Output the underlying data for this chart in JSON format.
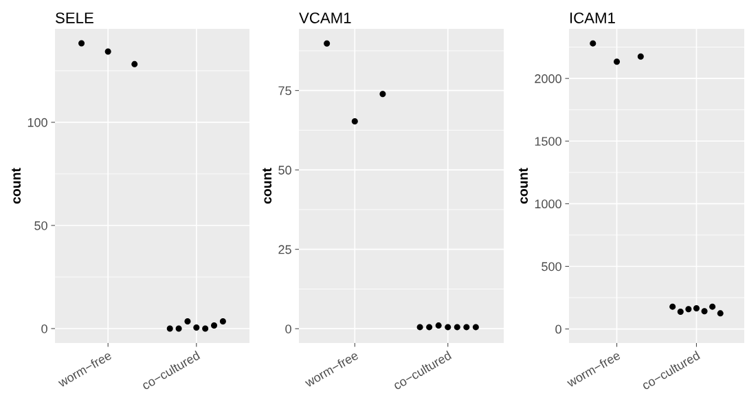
{
  "chart_data": [
    {
      "type": "scatter",
      "title": "SELE",
      "ylabel": "count",
      "categories": [
        "worm−free",
        "co−cultured"
      ],
      "ylim": [
        -7,
        145.3
      ],
      "yticks": [
        0,
        50,
        100
      ],
      "grid": true,
      "marker": "circle",
      "series": [
        {
          "color": "#000000",
          "x": [
            "worm−free",
            "worm−free",
            "worm−free",
            "co−cultured",
            "co−cultured",
            "co−cultured",
            "co−cultured",
            "co−cultured",
            "co−cultured",
            "co−cultured"
          ],
          "values": [
            138.3,
            134.3,
            128.2,
            0,
            0,
            3.5,
            0.5,
            0,
            1.5,
            3.5
          ]
        }
      ]
    },
    {
      "type": "scatter",
      "title": "VCAM1",
      "ylabel": "count",
      "categories": [
        "worm−free",
        "co−cultured"
      ],
      "ylim": [
        -4.5,
        94.4
      ],
      "yticks": [
        0,
        25,
        50,
        75
      ],
      "grid": true,
      "marker": "circle",
      "series": [
        {
          "color": "#000000",
          "x": [
            "worm−free",
            "worm−free",
            "worm−free",
            "co−cultured",
            "co−cultured",
            "co−cultured",
            "co−cultured",
            "co−cultured",
            "co−cultured",
            "co−cultured"
          ],
          "values": [
            89.8,
            65.3,
            73.9,
            0.5,
            0.5,
            1,
            0.5,
            0.5,
            0.5,
            0.5
          ]
        }
      ]
    },
    {
      "type": "scatter",
      "title": "ICAM1",
      "ylabel": "count",
      "categories": [
        "worm−free",
        "co−cultured"
      ],
      "ylim": [
        -112,
        2396
      ],
      "yticks": [
        0,
        500,
        1000,
        1500,
        2000
      ],
      "grid": true,
      "marker": "circle",
      "series": [
        {
          "color": "#000000",
          "x": [
            "worm−free",
            "worm−free",
            "worm−free",
            "co−cultured",
            "co−cultured",
            "co−cultured",
            "co−cultured",
            "co−cultured",
            "co−cultured",
            "co−cultured"
          ],
          "values": [
            2280,
            2134,
            2175,
            178,
            138,
            158,
            165,
            142,
            178,
            125
          ]
        }
      ]
    }
  ]
}
